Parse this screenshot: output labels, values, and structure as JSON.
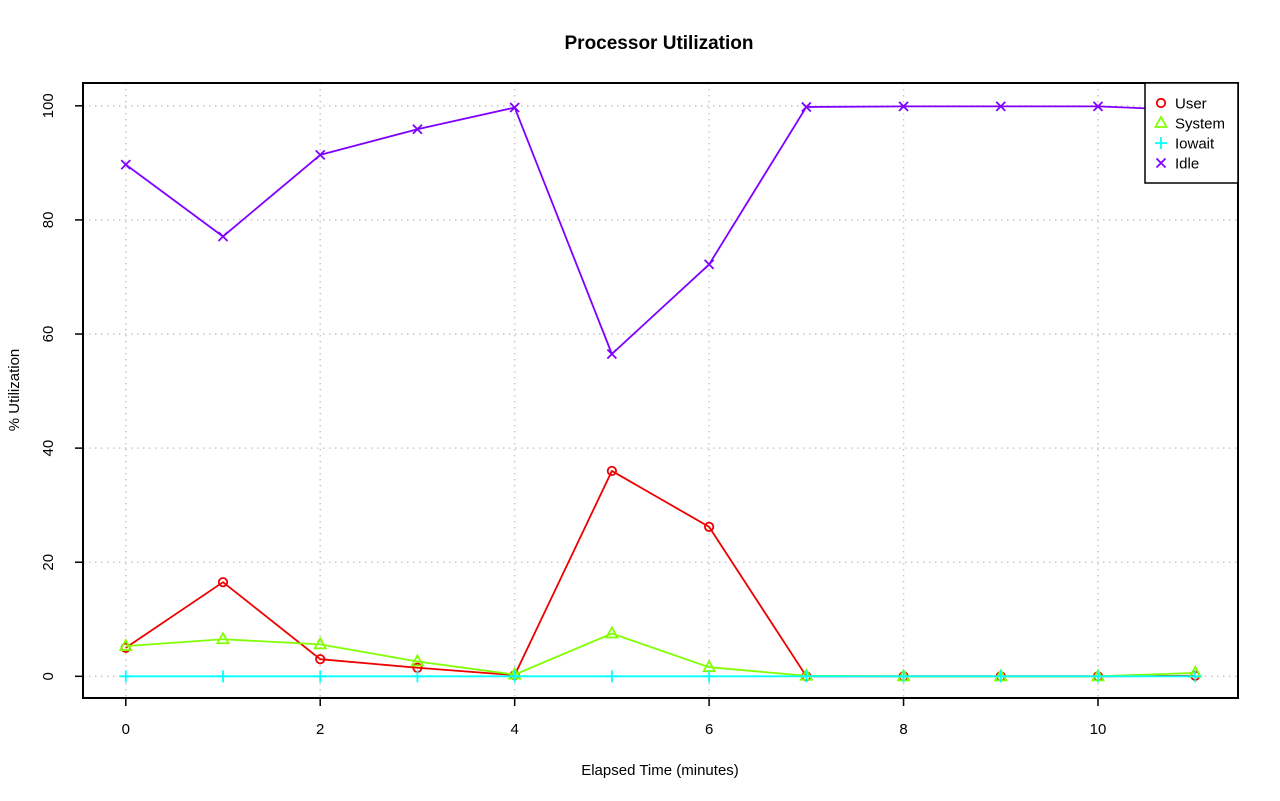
{
  "chart_data": {
    "type": "line",
    "title": "Processor Utilization",
    "xlabel": "Elapsed Time (minutes)",
    "ylabel": "% Utilization",
    "x": [
      0,
      1,
      2,
      3,
      4,
      5,
      6,
      7,
      8,
      9,
      10,
      11
    ],
    "xlim": [
      -0.44,
      11.44
    ],
    "ylim": [
      -3.8,
      104.0
    ],
    "x_ticks": [
      0,
      2,
      4,
      6,
      8,
      10
    ],
    "y_ticks": [
      0,
      20,
      40,
      60,
      80,
      100
    ],
    "grid": true,
    "legend_position": "top-right",
    "series": [
      {
        "name": "User",
        "color": "#ee0000",
        "marker": "circle",
        "values": [
          5.0,
          16.5,
          3.0,
          1.5,
          0.2,
          36.0,
          26.2,
          0.0,
          0.0,
          0.0,
          0.0,
          0.1
        ]
      },
      {
        "name": "System",
        "color": "#80ff00",
        "marker": "triangle",
        "values": [
          5.3,
          6.5,
          5.6,
          2.6,
          0.3,
          7.5,
          1.6,
          0.1,
          0.0,
          0.0,
          0.0,
          0.6
        ]
      },
      {
        "name": "Iowait",
        "color": "#00ffff",
        "marker": "plus",
        "values": [
          0,
          0,
          0,
          0,
          0,
          0,
          0,
          0,
          0,
          0,
          0,
          0
        ]
      },
      {
        "name": "Idle",
        "color": "#8000ff",
        "marker": "cross",
        "values": [
          89.7,
          77.1,
          91.4,
          95.9,
          99.7,
          56.5,
          72.2,
          99.8,
          99.9,
          99.9,
          99.9,
          99.2
        ]
      }
    ]
  }
}
